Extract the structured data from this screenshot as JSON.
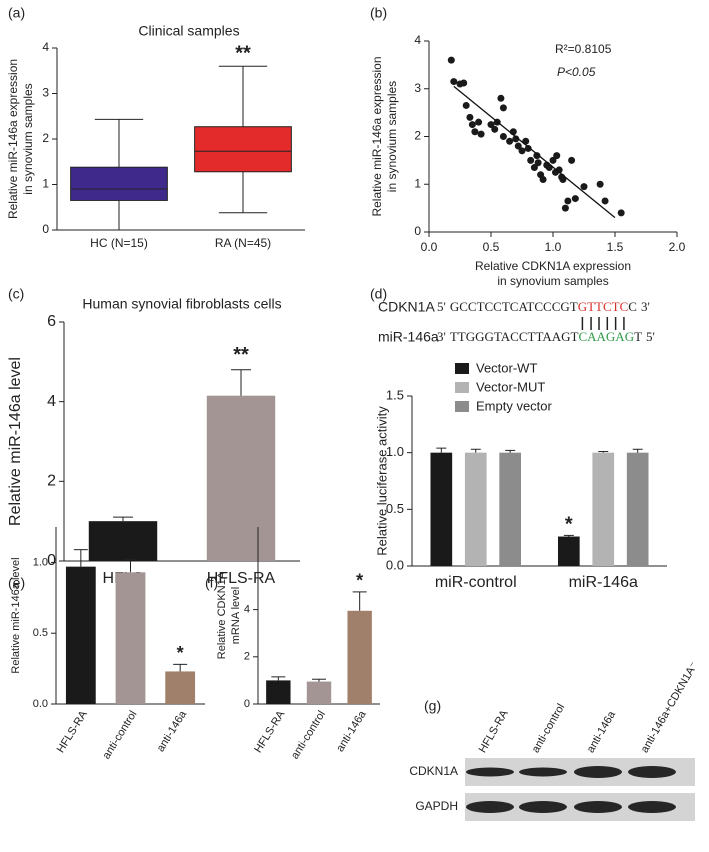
{
  "chart_data": [
    {
      "type": "box",
      "panel_label": "(a)",
      "title": "Clinical samples",
      "ylabel": [
        "Relative miR-146a expression",
        "in synovium samples"
      ],
      "categories": [
        "HC (N=15)",
        "RA (N=45)"
      ],
      "boxes": [
        {
          "min": 0,
          "q1": 0.65,
          "median": 0.9,
          "q3": 1.38,
          "max": 2.43,
          "color": "#3f2a8c"
        },
        {
          "min": 0.38,
          "q1": 1.28,
          "median": 1.73,
          "q3": 2.27,
          "max": 3.6,
          "color": "#e32b2b"
        }
      ],
      "annotation": "**",
      "ylim": [
        0,
        4
      ],
      "yticks": [
        0,
        1,
        2,
        3,
        4
      ]
    },
    {
      "type": "scatter",
      "panel_label": "(b)",
      "ylabel": [
        "Relative miR-146a expression",
        "in synovium samples"
      ],
      "xlabel": [
        "Relative CDKN1A expression",
        "in synovium samples"
      ],
      "annotations": [
        "R²=0.8105",
        "P<0.05"
      ],
      "x": [
        0.18,
        0.2,
        0.25,
        0.28,
        0.3,
        0.33,
        0.35,
        0.37,
        0.4,
        0.42,
        0.5,
        0.53,
        0.55,
        0.58,
        0.6,
        0.6,
        0.65,
        0.68,
        0.7,
        0.72,
        0.75,
        0.78,
        0.8,
        0.82,
        0.85,
        0.87,
        0.88,
        0.9,
        0.92,
        0.95,
        0.97,
        1.0,
        1.02,
        1.03,
        1.05,
        1.07,
        1.08,
        1.1,
        1.12,
        1.15,
        1.18,
        1.25,
        1.38,
        1.42,
        1.55
      ],
      "y": [
        3.6,
        3.15,
        3.1,
        3.12,
        2.65,
        2.4,
        2.25,
        2.1,
        2.3,
        2.05,
        2.25,
        2.15,
        2.3,
        2.8,
        2.6,
        2.0,
        1.9,
        2.1,
        1.95,
        1.8,
        1.7,
        1.9,
        1.75,
        1.5,
        1.35,
        1.6,
        1.45,
        1.2,
        1.1,
        1.4,
        1.35,
        1.5,
        1.25,
        1.6,
        1.3,
        1.15,
        1.1,
        0.5,
        0.65,
        1.5,
        0.7,
        0.95,
        1.0,
        0.65,
        0.4
      ],
      "color": "#1a1a1a",
      "fit": {
        "x": [
          0.2,
          1.5
        ],
        "y": [
          3.05,
          0.3
        ]
      },
      "xlim": [
        0,
        2
      ],
      "xticks": [
        {
          "value": 0,
          "label": "0.0"
        },
        0.5,
        {
          "value": 1,
          "label": "1.0"
        },
        1.5,
        {
          "value": 2,
          "label": "2.0"
        }
      ],
      "ylim": [
        0,
        4
      ],
      "yticks": [
        0,
        1,
        2,
        3,
        4
      ]
    },
    {
      "type": "bar",
      "panel_label": "(c)",
      "title": "Human synovial fibroblasts cells",
      "ylabel": "Relative miR-146a level",
      "categories": [
        "HFLS",
        "HFLS-RA"
      ],
      "values": [
        1,
        4.15
      ],
      "errors": [
        0.1,
        0.65
      ],
      "colors": [
        "#1a1a1a",
        "#a39594"
      ],
      "annotation": "**",
      "ylim": [
        0,
        6
      ],
      "yticks": [
        0,
        2,
        4,
        6
      ]
    },
    {
      "type": "grouped_bar",
      "panel_label": "(d)",
      "sequences": [
        {
          "name": "CDKN1A",
          "left": "5'",
          "seq": "GCCTCCTCATCCCGT",
          "site": "GTTCTC",
          "tail": "C",
          "right": "3'",
          "site_color": "#d9312b"
        },
        {
          "name": "miR-146a",
          "left": "3'",
          "seq": "TTGGGTACCTTAAGT",
          "site": "CAAGAG",
          "tail": "T",
          "right": "5'",
          "site_color": "#2f9a48"
        }
      ],
      "ylabel": "Relative luciferase activity",
      "categories": [
        "miR-control",
        "miR-146a"
      ],
      "series": [
        {
          "name": "Vector-WT",
          "color": "#1a1a1a",
          "values": [
            1,
            0.26
          ],
          "errors": [
            0.04,
            0.01
          ]
        },
        {
          "name": "Vector-MUT",
          "color": "#b3b3b3",
          "values": [
            1,
            1
          ],
          "errors": [
            0.03,
            0.01
          ]
        },
        {
          "name": "Empty vector",
          "color": "#8c8c8c",
          "values": [
            1,
            1
          ],
          "errors": [
            0.02,
            0.03
          ]
        }
      ],
      "annotation": "*",
      "ylim": [
        0,
        1.5
      ],
      "yticks": [
        {
          "value": 0,
          "label": "0.0"
        },
        0.5,
        {
          "value": 1,
          "label": "1.0"
        },
        1.5
      ]
    },
    {
      "type": "bar",
      "panel_label": "(e)",
      "ylabel": "Relative miR-146a level",
      "categories": [
        "HFLS-RA",
        "anti-control",
        "anti-146a"
      ],
      "values": [
        0.97,
        0.93,
        0.23
      ],
      "errors": [
        0.12,
        0.09,
        0.05
      ],
      "colors": [
        "#1a1a1a",
        "#a39594",
        "#a0806a"
      ],
      "annotation": "*",
      "ylim": [
        0,
        1.25
      ],
      "yticks": [
        {
          "value": 0,
          "label": "0.0"
        },
        0.5,
        {
          "value": 1,
          "label": "1.0"
        }
      ]
    },
    {
      "type": "bar",
      "panel_label": "(f)",
      "ylabel": [
        "Relative CDKN1A",
        "mRNA level"
      ],
      "categories": [
        "HFLS-RA",
        "anti-control",
        "anti-146a"
      ],
      "values": [
        1,
        0.95,
        3.95
      ],
      "errors": [
        0.15,
        0.1,
        0.8
      ],
      "colors": [
        "#1a1a1a",
        "#a39594",
        "#a0806a"
      ],
      "annotation": "*",
      "ylim": [
        0,
        7.5
      ],
      "yticks": [
        0,
        2,
        4
      ]
    },
    {
      "type": "blot",
      "panel_label": "(g)",
      "lanes": [
        "HFLS-RA",
        "anti-control",
        "anti-146a",
        "anti-146a+CDKN1A⁻"
      ],
      "rows": [
        "CDKN1A",
        "GAPDH"
      ]
    }
  ]
}
